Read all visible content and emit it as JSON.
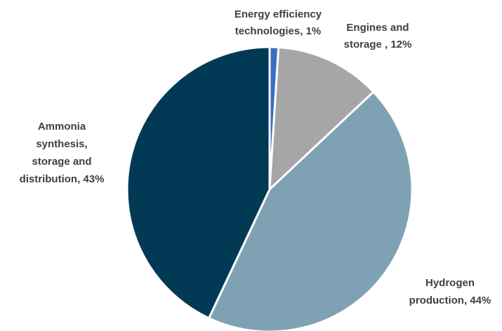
{
  "chart_data": {
    "type": "pie",
    "title": "",
    "slices": [
      {
        "label_lines": [
          "Energy efficiency",
          "technologies, 1%"
        ],
        "value": 1,
        "color": "#3a6fc4"
      },
      {
        "label_lines": [
          "Engines and",
          "storage , 12%"
        ],
        "value": 12,
        "color": "#a6a6a6"
      },
      {
        "label_lines": [
          "Hydrogen",
          "production, 44%"
        ],
        "value": 44,
        "color": "#7fa1b4"
      },
      {
        "label_lines": [
          "Ammonia",
          "synthesis,",
          "storage and",
          "distribution, 43%"
        ],
        "value": 43,
        "color": "#023a56"
      }
    ],
    "legend": "none",
    "start_angle": "12 o'clock, clockwise"
  }
}
